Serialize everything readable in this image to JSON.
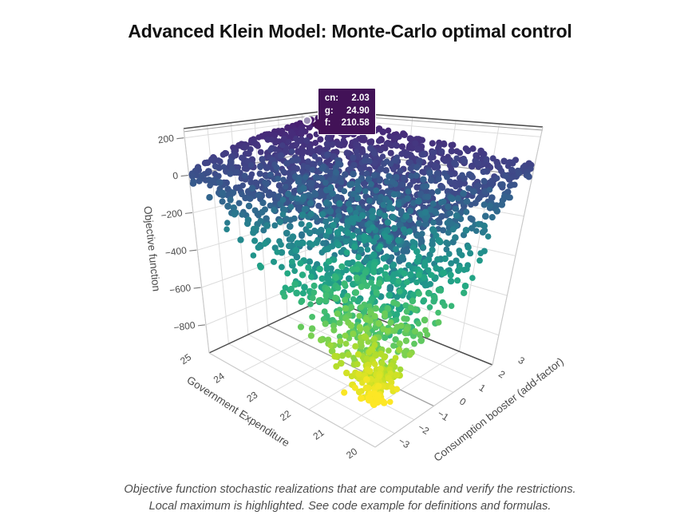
{
  "title": "Advanced Klein Model: Monte-Carlo optimal control",
  "caption": {
    "line1": "Objective function stochastic realizations that are computable and verify the restrictions.",
    "line2": "Local maximum is highlighted. See code example for definitions and formulas."
  },
  "tooltip": {
    "rows": [
      {
        "label": "cn:",
        "value": "2.03"
      },
      {
        "label": "g:",
        "value": "24.90"
      },
      {
        "label": "f:",
        "value": "210.58"
      }
    ]
  },
  "colors": {
    "title_text": "#111111",
    "caption_text": "#4d4d4d",
    "tick_text": "#4a4a4a",
    "axis_title_text": "#4a4a4a",
    "grid": "#dcdcdc",
    "edge_dark": "#4d4d4d",
    "edge_twin": "#9a9a9a",
    "edge_light": "#c9c9c9",
    "zero_line": "#a3a3a3",
    "back_edge": "#b8b8b8",
    "tick_mark": "#777777",
    "tooltip_bg": "#421257",
    "tooltip_text": "#ffffff",
    "highlight_fill": "#9b8fb5",
    "highlight_ring": "#ffffff"
  },
  "chart_data": {
    "type": "scatter",
    "subtype": "3d-scatter-monte-carlo-cloud",
    "title": "Advanced Klein Model: Monte-Carlo optimal control",
    "axes": {
      "x": {
        "title": "Government Expenditure",
        "range": [
          20,
          25
        ],
        "ticks": [
          25,
          24,
          23,
          22,
          21,
          20
        ],
        "tick_labels": [
          "25",
          "24",
          "23",
          "22",
          "21",
          "20"
        ]
      },
      "y": {
        "title": "Consumption booster (add-factor)",
        "range": [
          -3,
          3
        ],
        "ticks": [
          -3,
          -2,
          -1,
          0,
          1,
          2,
          3
        ],
        "tick_labels": [
          "−3",
          "−2",
          "−1",
          "0",
          "1",
          "2",
          "3"
        ]
      },
      "z": {
        "title": "Objective function",
        "range": [
          -950,
          250
        ],
        "ticks": [
          200,
          0,
          -200,
          -400,
          -600,
          -800
        ],
        "tick_labels": [
          "200",
          "0",
          "−200",
          "−400",
          "−600",
          "−800"
        ]
      }
    },
    "highlight_point": {
      "cn": 2.03,
      "g": 24.9,
      "f": 210.58
    },
    "colormap": "viridis",
    "colormap_stops": [
      [
        0,
        "#440154"
      ],
      [
        0.1,
        "#482475"
      ],
      [
        0.2,
        "#414487"
      ],
      [
        0.3,
        "#355f8d"
      ],
      [
        0.4,
        "#2a788e"
      ],
      [
        0.5,
        "#21918c"
      ],
      [
        0.6,
        "#22a884"
      ],
      [
        0.7,
        "#44bf70"
      ],
      [
        0.8,
        "#7ad151"
      ],
      [
        0.9,
        "#bddf26"
      ],
      [
        1,
        "#fde725"
      ]
    ],
    "color_f_range": [
      300,
      -910
    ],
    "marker_radius": 4,
    "f_min": -905,
    "generation": {
      "seed": 1337,
      "n_points": 2400,
      "depth_pow": 3.0,
      "shrink_pow": 0.85,
      "drift_pow": 0.75,
      "center_u": [
        0.5,
        0.8
      ],
      "center_v": [
        0.485,
        0.267
      ],
      "radius_u": [
        0.555,
        0.035
      ],
      "radius_v": [
        0.55,
        0.03
      ],
      "ftop": {
        "base": -15,
        "amp": 235,
        "v_pow": 0.6,
        "u_coef": 0.72,
        "noise": 18
      }
    },
    "legend": {
      "shown": false
    },
    "grid_on": true
  }
}
